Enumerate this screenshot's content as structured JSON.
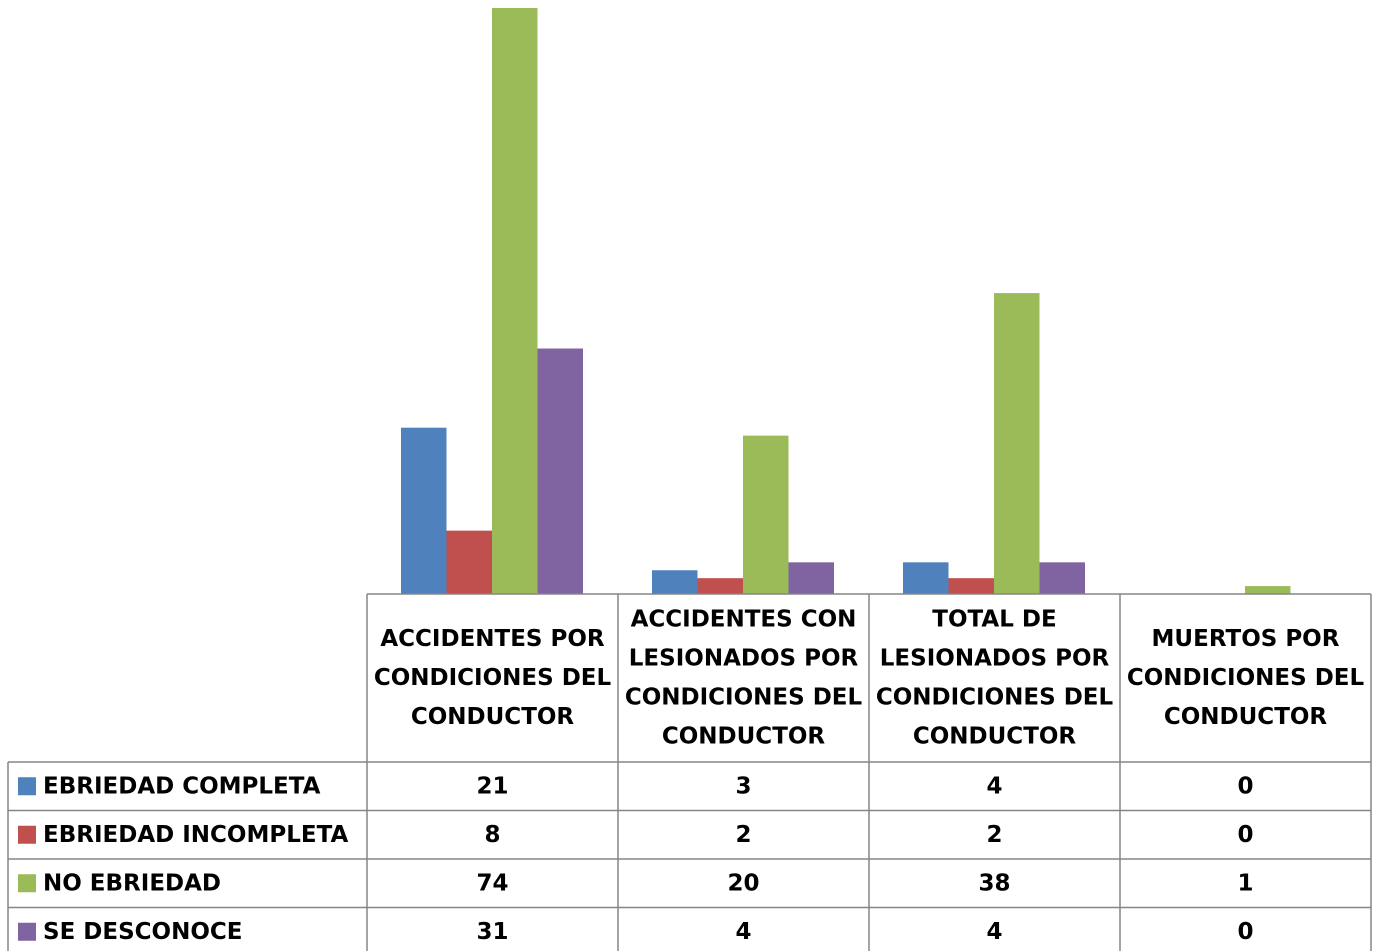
{
  "chart_data": {
    "type": "bar",
    "categories": [
      [
        "ACCIDENTES POR",
        "CONDICIONES DEL",
        "CONDUCTOR"
      ],
      [
        "ACCIDENTES CON",
        "LESIONADOS POR",
        "CONDICIONES DEL",
        "CONDUCTOR"
      ],
      [
        "TOTAL DE",
        "LESIONADOS POR",
        "CONDICIONES DEL",
        "CONDUCTOR"
      ],
      [
        "MUERTOS POR",
        "CONDICIONES DEL",
        "CONDUCTOR"
      ]
    ],
    "series": [
      {
        "name": "EBRIEDAD COMPLETA",
        "color": "#4f81bd",
        "values": [
          21,
          3,
          4,
          0
        ]
      },
      {
        "name": "EBRIEDAD INCOMPLETA",
        "color": "#c0504d",
        "values": [
          8,
          2,
          2,
          0
        ]
      },
      {
        "name": "NO EBRIEDAD",
        "color": "#9bbb59",
        "values": [
          74,
          20,
          38,
          1
        ]
      },
      {
        "name": "SE DESCONOCE",
        "color": "#8064a2",
        "values": [
          31,
          4,
          4,
          0
        ]
      }
    ],
    "ylim": [
      0,
      74
    ],
    "grid": false,
    "legend": "data-table"
  }
}
